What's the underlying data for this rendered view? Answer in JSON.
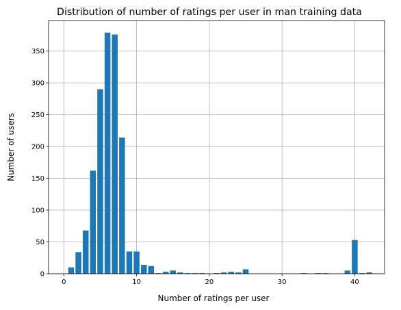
{
  "chart_data": {
    "type": "bar",
    "title": "Distribution of number of ratings per user in man training data",
    "xlabel": "Number of ratings per user",
    "ylabel": "Number of users",
    "xlim": [
      -2.1,
      44.1
    ],
    "ylim": [
      0,
      398
    ],
    "xticks": [
      0,
      10,
      20,
      30,
      40
    ],
    "yticks": [
      0,
      50,
      100,
      150,
      200,
      250,
      300,
      350
    ],
    "grid": true,
    "bar_color": "#1f77b4",
    "x": [
      1,
      2,
      3,
      4,
      5,
      6,
      7,
      8,
      9,
      10,
      11,
      12,
      13,
      14,
      15,
      16,
      17,
      18,
      19,
      21,
      22,
      23,
      24,
      25,
      33,
      35,
      36,
      39,
      40,
      41,
      42
    ],
    "values": [
      10,
      34,
      68,
      162,
      290,
      379,
      376,
      214,
      35,
      35,
      14,
      12,
      1,
      3,
      5,
      2,
      1,
      1,
      1,
      1,
      2,
      3,
      2,
      7,
      1,
      1,
      1,
      5,
      53,
      1,
      2
    ]
  }
}
